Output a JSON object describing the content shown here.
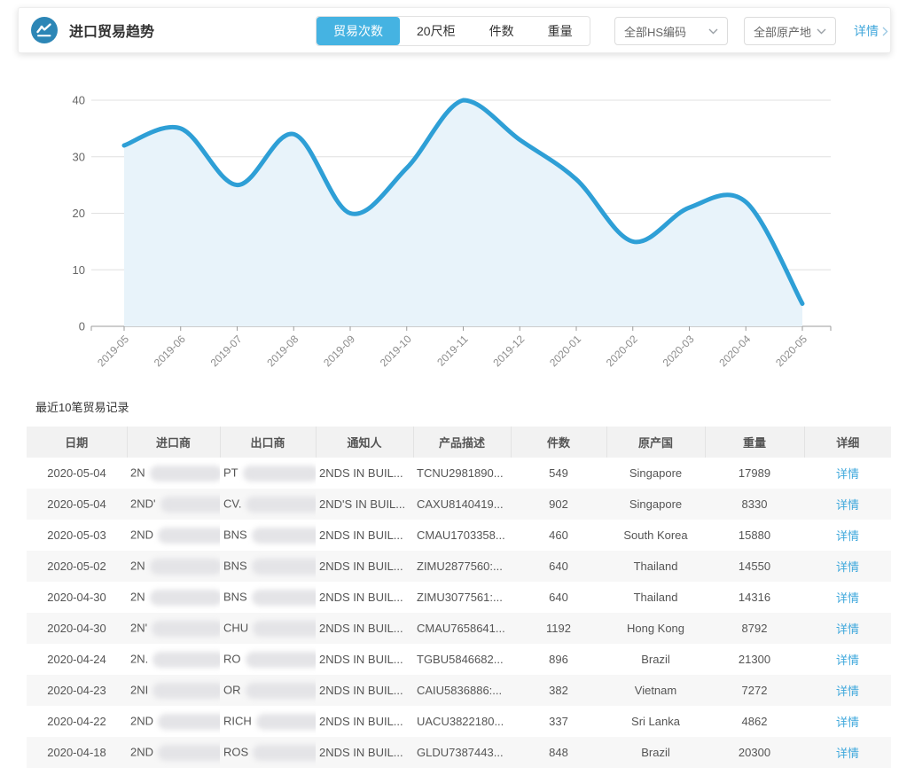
{
  "header": {
    "title": "进口贸易趋势",
    "tabs": [
      {
        "label": "贸易次数",
        "active": true
      },
      {
        "label": "20尺柜",
        "active": false
      },
      {
        "label": "件数",
        "active": false
      },
      {
        "label": "重量",
        "active": false
      }
    ],
    "filters": [
      {
        "label": "全部HS编码"
      },
      {
        "label": "全部原产地"
      }
    ],
    "detail_link": "详情"
  },
  "theme": {
    "accent_blue": "#45b3e2",
    "link_blue": "#3fa8dc",
    "brand_icon_bg": "#2c86b6"
  },
  "chart_data": {
    "type": "area",
    "title": "",
    "xlabel": "",
    "ylabel": "",
    "x": [
      "2019-05",
      "2019-06",
      "2019-07",
      "2019-08",
      "2019-09",
      "2019-10",
      "2019-11",
      "2019-12",
      "2020-01",
      "2020-02",
      "2020-03",
      "2020-04",
      "2020-05"
    ],
    "series": [
      {
        "name": "贸易次数",
        "values": [
          32,
          35,
          25,
          34,
          20,
          28,
          40,
          33,
          26,
          15,
          21,
          22,
          4
        ]
      }
    ],
    "ylim": [
      0,
      40
    ],
    "yticks": [
      0,
      10,
      20,
      30,
      40
    ],
    "grid": true,
    "legend_position": "none",
    "line_color": "#2e9fd6",
    "area_color": "#e8f3fa"
  },
  "table": {
    "section_title": "最近10笔贸易记录",
    "columns": [
      "日期",
      "进口商",
      "出口商",
      "通知人",
      "产品描述",
      "件数",
      "原产国",
      "重量",
      "详细"
    ],
    "rows": [
      {
        "date": "2020-05-04",
        "importer_prefix": "2N",
        "importer_suffix": "",
        "exporter_prefix": "PT",
        "notify": "2NDS IN BUIL...",
        "product": "TCNU2981890...",
        "pieces": "549",
        "origin": "Singapore",
        "weight": "17989",
        "detail": "详情"
      },
      {
        "date": "2020-05-04",
        "importer_prefix": "2ND'",
        "importer_suffix": "",
        "exporter_prefix": "CV.",
        "notify": "2ND'S IN BUIL...",
        "product": "CAXU8140419...",
        "pieces": "902",
        "origin": "Singapore",
        "weight": "8330",
        "detail": "详情"
      },
      {
        "date": "2020-05-03",
        "importer_prefix": "2ND",
        "importer_suffix": "",
        "exporter_prefix": "BNS",
        "notify": "2NDS IN BUIL...",
        "product": "CMAU1703358...",
        "pieces": "460",
        "origin": "South Korea",
        "weight": "15880",
        "detail": "详情"
      },
      {
        "date": "2020-05-02",
        "importer_prefix": "2N",
        "importer_suffix": ".",
        "exporter_prefix": "BNS",
        "notify": "2NDS IN BUIL...",
        "product": "ZIMU2877560:...",
        "pieces": "640",
        "origin": "Thailand",
        "weight": "14550",
        "detail": "详情"
      },
      {
        "date": "2020-04-30",
        "importer_prefix": "2N",
        "importer_suffix": "",
        "exporter_prefix": "BNS",
        "notify": "2NDS IN BUIL...",
        "product": "ZIMU3077561:...",
        "pieces": "640",
        "origin": "Thailand",
        "weight": "14316",
        "detail": "详情"
      },
      {
        "date": "2020-04-30",
        "importer_prefix": "2N'",
        "importer_suffix": "",
        "exporter_prefix": "CHU",
        "notify": "2NDS IN BUIL...",
        "product": "CMAU7658641...",
        "pieces": "1192",
        "origin": "Hong Kong",
        "weight": "8792",
        "detail": "详情"
      },
      {
        "date": "2020-04-24",
        "importer_prefix": "2N.",
        "importer_suffix": "",
        "exporter_prefix": "RO",
        "notify": "2NDS IN BUIL...",
        "product": "TGBU5846682...",
        "pieces": "896",
        "origin": "Brazil",
        "weight": "21300",
        "detail": "详情"
      },
      {
        "date": "2020-04-23",
        "importer_prefix": "2NI",
        "importer_suffix": "",
        "exporter_prefix": "OR",
        "notify": "2NDS IN BUIL...",
        "product": "CAIU5836886:...",
        "pieces": "382",
        "origin": "Vietnam",
        "weight": "7272",
        "detail": "详情"
      },
      {
        "date": "2020-04-22",
        "importer_prefix": "2ND",
        "importer_suffix": "",
        "exporter_prefix": "RICH",
        "notify": "2NDS IN BUIL...",
        "product": "UACU3822180...",
        "pieces": "337",
        "origin": "Sri Lanka",
        "weight": "4862",
        "detail": "详情"
      },
      {
        "date": "2020-04-18",
        "importer_prefix": "2ND",
        "importer_suffix": ".",
        "exporter_prefix": "ROS",
        "notify": "2NDS IN BUIL...",
        "product": "GLDU7387443...",
        "pieces": "848",
        "origin": "Brazil",
        "weight": "20300",
        "detail": "详情"
      }
    ]
  }
}
